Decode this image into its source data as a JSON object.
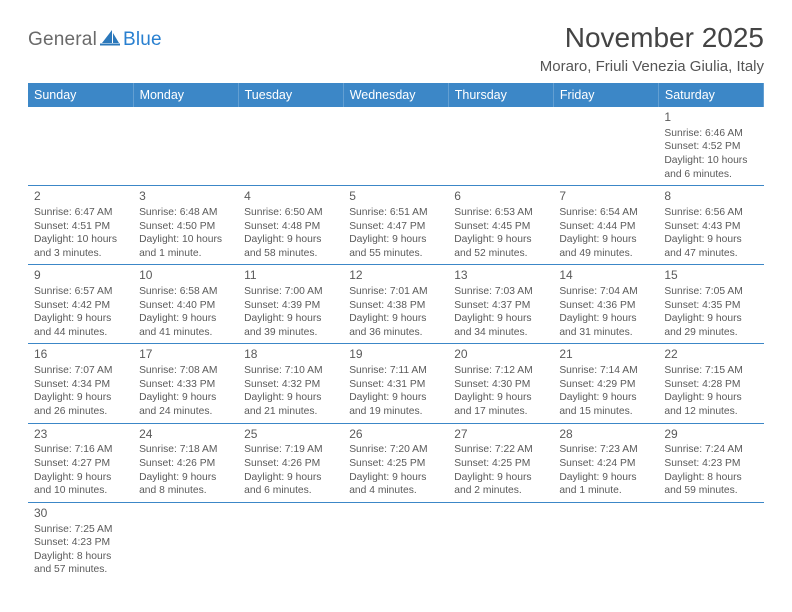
{
  "logo": {
    "part1": "General",
    "part2": "Blue"
  },
  "title": "November 2025",
  "location": "Moraro, Friuli Venezia Giulia, Italy",
  "colors": {
    "header_bg": "#3c87c7",
    "header_text": "#ffffff",
    "cell_border": "#3c87c7",
    "text": "#5a5a5a",
    "logo_gray": "#6a6a6a",
    "logo_blue": "#2980d0"
  },
  "day_headers": [
    "Sunday",
    "Monday",
    "Tuesday",
    "Wednesday",
    "Thursday",
    "Friday",
    "Saturday"
  ],
  "weeks": [
    [
      null,
      null,
      null,
      null,
      null,
      null,
      {
        "n": "1",
        "sunrise": "Sunrise: 6:46 AM",
        "sunset": "Sunset: 4:52 PM",
        "day1": "Daylight: 10 hours",
        "day2": "and 6 minutes."
      }
    ],
    [
      {
        "n": "2",
        "sunrise": "Sunrise: 6:47 AM",
        "sunset": "Sunset: 4:51 PM",
        "day1": "Daylight: 10 hours",
        "day2": "and 3 minutes."
      },
      {
        "n": "3",
        "sunrise": "Sunrise: 6:48 AM",
        "sunset": "Sunset: 4:50 PM",
        "day1": "Daylight: 10 hours",
        "day2": "and 1 minute."
      },
      {
        "n": "4",
        "sunrise": "Sunrise: 6:50 AM",
        "sunset": "Sunset: 4:48 PM",
        "day1": "Daylight: 9 hours",
        "day2": "and 58 minutes."
      },
      {
        "n": "5",
        "sunrise": "Sunrise: 6:51 AM",
        "sunset": "Sunset: 4:47 PM",
        "day1": "Daylight: 9 hours",
        "day2": "and 55 minutes."
      },
      {
        "n": "6",
        "sunrise": "Sunrise: 6:53 AM",
        "sunset": "Sunset: 4:45 PM",
        "day1": "Daylight: 9 hours",
        "day2": "and 52 minutes."
      },
      {
        "n": "7",
        "sunrise": "Sunrise: 6:54 AM",
        "sunset": "Sunset: 4:44 PM",
        "day1": "Daylight: 9 hours",
        "day2": "and 49 minutes."
      },
      {
        "n": "8",
        "sunrise": "Sunrise: 6:56 AM",
        "sunset": "Sunset: 4:43 PM",
        "day1": "Daylight: 9 hours",
        "day2": "and 47 minutes."
      }
    ],
    [
      {
        "n": "9",
        "sunrise": "Sunrise: 6:57 AM",
        "sunset": "Sunset: 4:42 PM",
        "day1": "Daylight: 9 hours",
        "day2": "and 44 minutes."
      },
      {
        "n": "10",
        "sunrise": "Sunrise: 6:58 AM",
        "sunset": "Sunset: 4:40 PM",
        "day1": "Daylight: 9 hours",
        "day2": "and 41 minutes."
      },
      {
        "n": "11",
        "sunrise": "Sunrise: 7:00 AM",
        "sunset": "Sunset: 4:39 PM",
        "day1": "Daylight: 9 hours",
        "day2": "and 39 minutes."
      },
      {
        "n": "12",
        "sunrise": "Sunrise: 7:01 AM",
        "sunset": "Sunset: 4:38 PM",
        "day1": "Daylight: 9 hours",
        "day2": "and 36 minutes."
      },
      {
        "n": "13",
        "sunrise": "Sunrise: 7:03 AM",
        "sunset": "Sunset: 4:37 PM",
        "day1": "Daylight: 9 hours",
        "day2": "and 34 minutes."
      },
      {
        "n": "14",
        "sunrise": "Sunrise: 7:04 AM",
        "sunset": "Sunset: 4:36 PM",
        "day1": "Daylight: 9 hours",
        "day2": "and 31 minutes."
      },
      {
        "n": "15",
        "sunrise": "Sunrise: 7:05 AM",
        "sunset": "Sunset: 4:35 PM",
        "day1": "Daylight: 9 hours",
        "day2": "and 29 minutes."
      }
    ],
    [
      {
        "n": "16",
        "sunrise": "Sunrise: 7:07 AM",
        "sunset": "Sunset: 4:34 PM",
        "day1": "Daylight: 9 hours",
        "day2": "and 26 minutes."
      },
      {
        "n": "17",
        "sunrise": "Sunrise: 7:08 AM",
        "sunset": "Sunset: 4:33 PM",
        "day1": "Daylight: 9 hours",
        "day2": "and 24 minutes."
      },
      {
        "n": "18",
        "sunrise": "Sunrise: 7:10 AM",
        "sunset": "Sunset: 4:32 PM",
        "day1": "Daylight: 9 hours",
        "day2": "and 21 minutes."
      },
      {
        "n": "19",
        "sunrise": "Sunrise: 7:11 AM",
        "sunset": "Sunset: 4:31 PM",
        "day1": "Daylight: 9 hours",
        "day2": "and 19 minutes."
      },
      {
        "n": "20",
        "sunrise": "Sunrise: 7:12 AM",
        "sunset": "Sunset: 4:30 PM",
        "day1": "Daylight: 9 hours",
        "day2": "and 17 minutes."
      },
      {
        "n": "21",
        "sunrise": "Sunrise: 7:14 AM",
        "sunset": "Sunset: 4:29 PM",
        "day1": "Daylight: 9 hours",
        "day2": "and 15 minutes."
      },
      {
        "n": "22",
        "sunrise": "Sunrise: 7:15 AM",
        "sunset": "Sunset: 4:28 PM",
        "day1": "Daylight: 9 hours",
        "day2": "and 12 minutes."
      }
    ],
    [
      {
        "n": "23",
        "sunrise": "Sunrise: 7:16 AM",
        "sunset": "Sunset: 4:27 PM",
        "day1": "Daylight: 9 hours",
        "day2": "and 10 minutes."
      },
      {
        "n": "24",
        "sunrise": "Sunrise: 7:18 AM",
        "sunset": "Sunset: 4:26 PM",
        "day1": "Daylight: 9 hours",
        "day2": "and 8 minutes."
      },
      {
        "n": "25",
        "sunrise": "Sunrise: 7:19 AM",
        "sunset": "Sunset: 4:26 PM",
        "day1": "Daylight: 9 hours",
        "day2": "and 6 minutes."
      },
      {
        "n": "26",
        "sunrise": "Sunrise: 7:20 AM",
        "sunset": "Sunset: 4:25 PM",
        "day1": "Daylight: 9 hours",
        "day2": "and 4 minutes."
      },
      {
        "n": "27",
        "sunrise": "Sunrise: 7:22 AM",
        "sunset": "Sunset: 4:25 PM",
        "day1": "Daylight: 9 hours",
        "day2": "and 2 minutes."
      },
      {
        "n": "28",
        "sunrise": "Sunrise: 7:23 AM",
        "sunset": "Sunset: 4:24 PM",
        "day1": "Daylight: 9 hours",
        "day2": "and 1 minute."
      },
      {
        "n": "29",
        "sunrise": "Sunrise: 7:24 AM",
        "sunset": "Sunset: 4:23 PM",
        "day1": "Daylight: 8 hours",
        "day2": "and 59 minutes."
      }
    ],
    [
      {
        "n": "30",
        "sunrise": "Sunrise: 7:25 AM",
        "sunset": "Sunset: 4:23 PM",
        "day1": "Daylight: 8 hours",
        "day2": "and 57 minutes."
      },
      null,
      null,
      null,
      null,
      null,
      null
    ]
  ]
}
